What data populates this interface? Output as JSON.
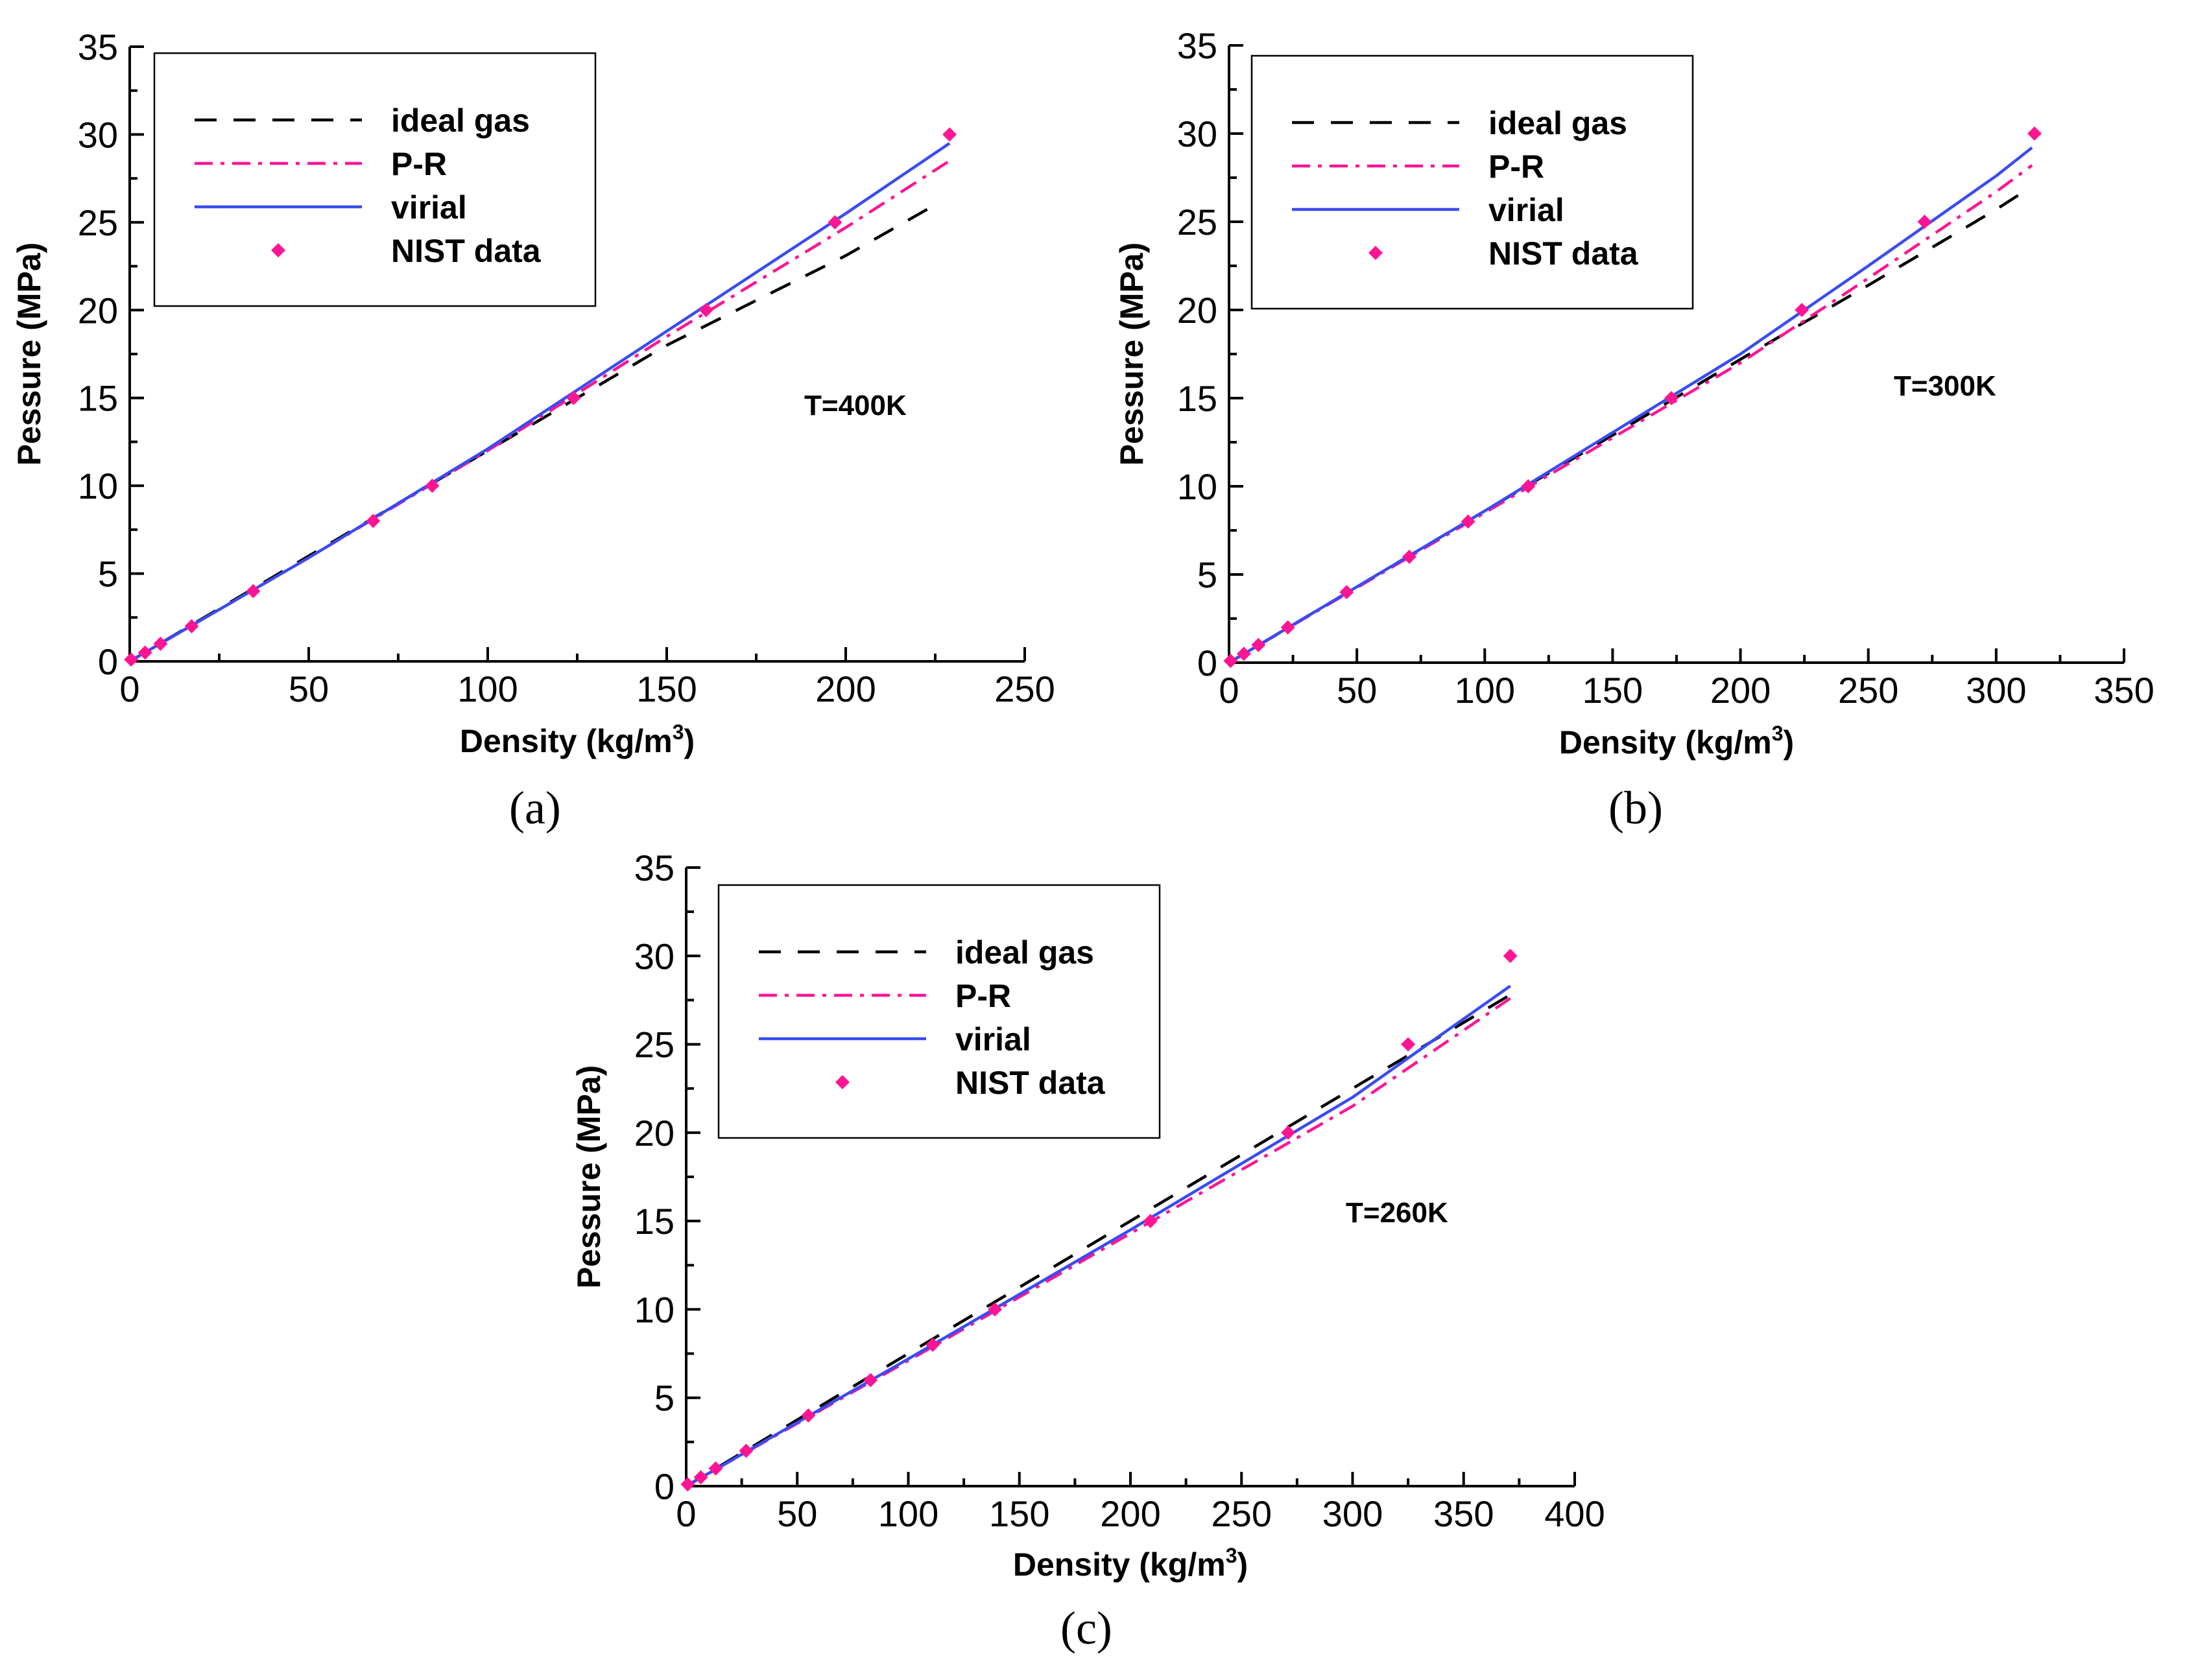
{
  "figure": {
    "panel_labels": [
      "(a)",
      "(b)",
      "(c)"
    ]
  },
  "legend": {
    "entries": [
      "ideal gas",
      "P-R",
      "virial",
      "NIST data"
    ]
  },
  "colors": {
    "ideal_gas": "#000000",
    "pr": "#ff1493",
    "virial": "#3a4cf0",
    "nist": "#ff1493"
  },
  "chart_data": [
    {
      "type": "line",
      "panel": "(a)",
      "annotation": "T=400K",
      "xlabel": "Density (kg/m",
      "xlabel_sup": "3",
      "xlabel_end": ")",
      "ylabel": "Pessure (MPa)",
      "xlim": [
        0,
        250
      ],
      "ylim": [
        0,
        35
      ],
      "xticks": [
        0,
        50,
        100,
        150,
        200,
        250
      ],
      "yticks": [
        0,
        5,
        10,
        15,
        20,
        25,
        30,
        35
      ],
      "series": [
        {
          "name": "ideal gas",
          "style": "dashed",
          "x": [
            0,
            50,
            100,
            150,
            200,
            225
          ],
          "y": [
            0,
            6.0,
            12.0,
            18.0,
            23.1,
            26.0
          ]
        },
        {
          "name": "P-R",
          "style": "dashdot",
          "x": [
            0,
            50,
            100,
            150,
            200,
            229
          ],
          "y": [
            0,
            5.9,
            12.0,
            18.5,
            24.7,
            28.5
          ]
        },
        {
          "name": "virial",
          "style": "solid",
          "x": [
            0,
            50,
            100,
            150,
            200,
            229
          ],
          "y": [
            0,
            5.9,
            12.1,
            18.8,
            25.5,
            29.5
          ]
        }
      ],
      "points": {
        "name": "NIST data",
        "x": [
          0.4,
          4.3,
          8.6,
          17.3,
          34.5,
          68,
          84.5,
          124,
          161,
          197,
          229
        ],
        "y": [
          0.1,
          0.5,
          1,
          2,
          4,
          8,
          10,
          15,
          20,
          25,
          30
        ]
      }
    },
    {
      "type": "line",
      "panel": "(b)",
      "annotation": "T=300K",
      "xlabel": "Density (kg/m",
      "xlabel_sup": "3",
      "xlabel_end": ")",
      "ylabel": "Pessure (MPa)",
      "xlim": [
        0,
        350
      ],
      "ylim": [
        0,
        35
      ],
      "xticks": [
        0,
        50,
        100,
        150,
        200,
        250,
        300,
        350
      ],
      "yticks": [
        0,
        5,
        10,
        15,
        20,
        25,
        30,
        35
      ],
      "series": [
        {
          "name": "ideal gas",
          "style": "dashed",
          "x": [
            0,
            100,
            200,
            250,
            300,
            314
          ],
          "y": [
            0,
            8.6,
            17.2,
            21.4,
            25.7,
            27.0
          ]
        },
        {
          "name": "P-R",
          "style": "dashdot",
          "x": [
            0,
            100,
            200,
            250,
            300,
            314
          ],
          "y": [
            0,
            8.5,
            17.0,
            21.8,
            26.7,
            28.2
          ]
        },
        {
          "name": "virial",
          "style": "solid",
          "x": [
            0,
            100,
            200,
            250,
            300,
            314
          ],
          "y": [
            0,
            8.6,
            17.5,
            22.5,
            27.6,
            29.2
          ]
        }
      ],
      "points": {
        "name": "NIST data",
        "x": [
          0.6,
          5.8,
          11.5,
          23,
          46,
          70.5,
          93.5,
          117,
          173,
          224,
          272,
          315
        ],
        "y": [
          0.1,
          0.5,
          1,
          2,
          4,
          6,
          8,
          10,
          15,
          20,
          25,
          30
        ]
      }
    },
    {
      "type": "line",
      "panel": "(c)",
      "annotation": "T=260K",
      "xlabel": "Density (kg/m",
      "xlabel_sup": "3",
      "xlabel_end": ")",
      "ylabel": "Pessure (MPa)",
      "xlim": [
        0,
        400
      ],
      "ylim": [
        0,
        35
      ],
      "xticks": [
        0,
        50,
        100,
        150,
        200,
        250,
        300,
        350,
        400
      ],
      "yticks": [
        0,
        5,
        10,
        15,
        20,
        25,
        30,
        35
      ],
      "series": [
        {
          "name": "ideal gas",
          "style": "dashed",
          "x": [
            0,
            100,
            200,
            300,
            371
          ],
          "y": [
            0,
            7.5,
            15.0,
            22.5,
            27.8
          ]
        },
        {
          "name": "P-R",
          "style": "dashdot",
          "x": [
            0,
            100,
            200,
            300,
            371
          ],
          "y": [
            0,
            7.1,
            14.3,
            21.5,
            27.6
          ]
        },
        {
          "name": "virial",
          "style": "solid",
          "x": [
            0,
            100,
            200,
            300,
            371
          ],
          "y": [
            0,
            7.2,
            14.5,
            22.0,
            28.3
          ]
        }
      ],
      "points": {
        "name": "NIST data",
        "x": [
          0.7,
          6.6,
          13.3,
          27,
          55,
          83,
          111,
          139,
          209,
          271,
          325,
          371
        ],
        "y": [
          0.1,
          0.5,
          1,
          2,
          4,
          6,
          8,
          10,
          15,
          20,
          25,
          30
        ]
      }
    }
  ]
}
